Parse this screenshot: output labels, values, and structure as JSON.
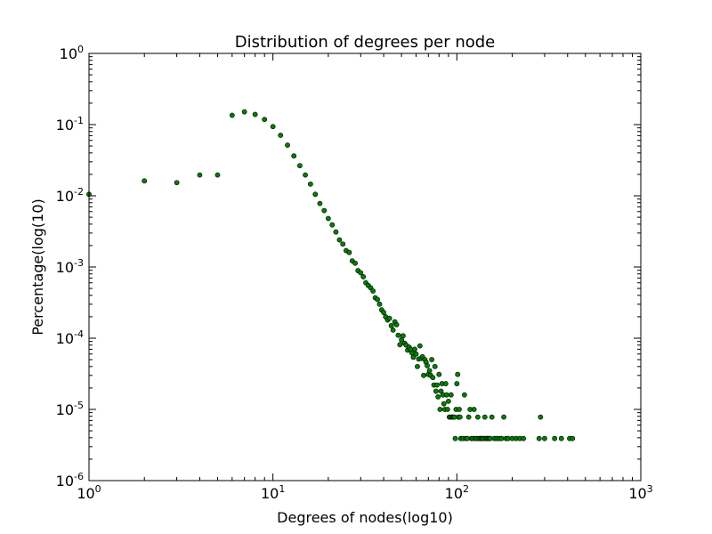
{
  "colors": {
    "background": "#ffffff",
    "axes": "#000000",
    "marker_fill": "#008000",
    "marker_edge": "#000000"
  },
  "chart_data": {
    "type": "scatter",
    "title": "Distribution of degrees per node",
    "xlabel": "Degrees of nodes(log10)",
    "ylabel": "Percentage(log(10)",
    "xscale": "log",
    "yscale": "log",
    "xlim": [
      1,
      1000
    ],
    "ylim": [
      1e-06,
      1
    ],
    "grid": false,
    "legend": null,
    "x_ticks": [
      {
        "value": 1,
        "base": "10",
        "exp": "0"
      },
      {
        "value": 10,
        "base": "10",
        "exp": "1"
      },
      {
        "value": 100,
        "base": "10",
        "exp": "2"
      },
      {
        "value": 1000,
        "base": "10",
        "exp": "3"
      }
    ],
    "y_ticks": [
      {
        "value": 1,
        "base": "10",
        "exp": "0"
      },
      {
        "value": 0.1,
        "base": "10",
        "exp": "-1"
      },
      {
        "value": 0.01,
        "base": "10",
        "exp": "-2"
      },
      {
        "value": 0.001,
        "base": "10",
        "exp": "-3"
      },
      {
        "value": 0.0001,
        "base": "10",
        "exp": "-4"
      },
      {
        "value": 1e-05,
        "base": "10",
        "exp": "-5"
      },
      {
        "value": 1e-06,
        "base": "10",
        "exp": "-6"
      }
    ],
    "points": [
      [
        1,
        0.0105
      ],
      [
        2,
        0.0162
      ],
      [
        3,
        0.0153
      ],
      [
        4,
        0.0196
      ],
      [
        5,
        0.0196
      ],
      [
        6,
        0.135
      ],
      [
        7,
        0.151
      ],
      [
        8,
        0.139
      ],
      [
        9,
        0.118
      ],
      [
        10,
        0.0937
      ],
      [
        11,
        0.0708
      ],
      [
        12,
        0.0515
      ],
      [
        13,
        0.0363
      ],
      [
        14,
        0.0265
      ],
      [
        15,
        0.0196
      ],
      [
        16,
        0.0146
      ],
      [
        17,
        0.0105
      ],
      [
        18,
        0.0078
      ],
      [
        19,
        0.0062
      ],
      [
        20,
        0.0048
      ],
      [
        21,
        0.0039
      ],
      [
        22,
        0.0031
      ],
      [
        23,
        0.0024
      ],
      [
        24,
        0.0021
      ],
      [
        25,
        0.0017
      ],
      [
        26,
        0.0016
      ],
      [
        27,
        0.00122
      ],
      [
        28,
        0.00113
      ],
      [
        29,
        0.00089
      ],
      [
        30,
        0.00083
      ],
      [
        31,
        0.00073
      ],
      [
        32,
        0.0006
      ],
      [
        33,
        0.00055
      ],
      [
        34,
        0.00051
      ],
      [
        35,
        0.00046
      ],
      [
        36,
        0.00037
      ],
      [
        37,
        0.00035
      ],
      [
        38,
        0.0003
      ],
      [
        39,
        0.00025
      ],
      [
        40,
        0.00023
      ],
      [
        41,
        0.0002
      ],
      [
        42,
        0.00018
      ],
      [
        43,
        0.00019
      ],
      [
        44,
        0.00015
      ],
      [
        45,
        0.00013
      ],
      [
        46,
        0.00017
      ],
      [
        47,
        0.000155
      ],
      [
        48,
        0.00011
      ],
      [
        49,
        8.1e-05
      ],
      [
        50,
        9.5e-05
      ],
      [
        51,
        0.000108
      ],
      [
        52,
        8.5e-05
      ],
      [
        53,
        8e-05
      ],
      [
        54,
        6.8e-05
      ],
      [
        55,
        7.5e-05
      ],
      [
        56,
        7e-05
      ],
      [
        57,
        6.2e-05
      ],
      [
        58,
        5.4e-05
      ],
      [
        59,
        7e-05
      ],
      [
        60,
        6e-05
      ],
      [
        61,
        4e-05
      ],
      [
        62,
        5.1e-05
      ],
      [
        63,
        7.8e-05
      ],
      [
        64,
        5.2e-05
      ],
      [
        65,
        5.5e-05
      ],
      [
        66,
        3e-05
      ],
      [
        67,
        5e-05
      ],
      [
        68,
        4.6e-05
      ],
      [
        69,
        4.1e-05
      ],
      [
        70,
        3.1e-05
      ],
      [
        71,
        3.5e-05
      ],
      [
        72,
        3e-05
      ],
      [
        73,
        5e-05
      ],
      [
        74,
        2.8e-05
      ],
      [
        75,
        2.2e-05
      ],
      [
        76,
        4e-05
      ],
      [
        77,
        1.8e-05
      ],
      [
        78,
        2.2e-05
      ],
      [
        79,
        1.5e-05
      ],
      [
        80,
        3.1e-05
      ],
      [
        81,
        1e-05
      ],
      [
        82,
        1.8e-05
      ],
      [
        83,
        2.3e-05
      ],
      [
        84,
        1.6e-05
      ],
      [
        85,
        1.2e-05
      ],
      [
        86,
        1e-05
      ],
      [
        87,
        2.3e-05
      ],
      [
        88,
        1.6e-05
      ],
      [
        89,
        1e-05
      ],
      [
        90,
        1.3e-05
      ],
      [
        91,
        7.8e-06
      ],
      [
        92,
        7.8e-06
      ],
      [
        93,
        1.6e-05
      ],
      [
        94,
        7.8e-06
      ],
      [
        95,
        7.8e-06
      ],
      [
        96,
        7.8e-06
      ],
      [
        97,
        7.8e-06
      ],
      [
        98,
        3.9e-06
      ],
      [
        99,
        1e-05
      ],
      [
        100,
        2.3e-05
      ],
      [
        101,
        3.1e-05
      ],
      [
        102,
        7.8e-06
      ],
      [
        103,
        1e-05
      ],
      [
        104,
        7.8e-06
      ],
      [
        105,
        3.9e-06
      ],
      [
        108,
        3.9e-06
      ],
      [
        110,
        1.6e-05
      ],
      [
        112,
        3.9e-06
      ],
      [
        114,
        3.9e-06
      ],
      [
        116,
        7.8e-06
      ],
      [
        118,
        1e-05
      ],
      [
        120,
        3.9e-06
      ],
      [
        122,
        3.9e-06
      ],
      [
        124,
        1e-05
      ],
      [
        126,
        3.9e-06
      ],
      [
        128,
        3.9e-06
      ],
      [
        130,
        7.8e-06
      ],
      [
        132,
        3.9e-06
      ],
      [
        134,
        3.9e-06
      ],
      [
        136,
        3.9e-06
      ],
      [
        138,
        3.9e-06
      ],
      [
        140,
        3.9e-06
      ],
      [
        142,
        7.8e-06
      ],
      [
        144,
        3.9e-06
      ],
      [
        146,
        3.9e-06
      ],
      [
        148,
        3.9e-06
      ],
      [
        150,
        3.9e-06
      ],
      [
        152,
        3.9e-06
      ],
      [
        155,
        7.8e-06
      ],
      [
        160,
        3.9e-06
      ],
      [
        165,
        3.9e-06
      ],
      [
        170,
        3.9e-06
      ],
      [
        175,
        3.9e-06
      ],
      [
        180,
        7.8e-06
      ],
      [
        185,
        3.9e-06
      ],
      [
        190,
        3.9e-06
      ],
      [
        200,
        3.9e-06
      ],
      [
        210,
        3.9e-06
      ],
      [
        220,
        3.9e-06
      ],
      [
        230,
        3.9e-06
      ],
      [
        280,
        3.9e-06
      ],
      [
        285,
        7.8e-06
      ],
      [
        300,
        3.9e-06
      ],
      [
        340,
        3.9e-06
      ],
      [
        370,
        3.9e-06
      ],
      [
        410,
        3.9e-06
      ],
      [
        425,
        3.9e-06
      ]
    ]
  }
}
